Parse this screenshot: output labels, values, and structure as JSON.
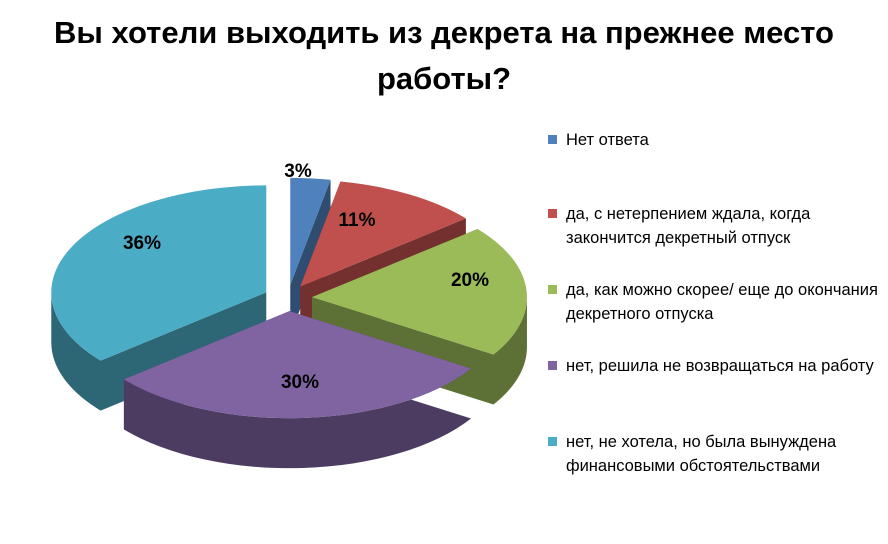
{
  "chart_data": {
    "type": "pie",
    "title": "Вы хотели выходить из декрета на прежнее место работы?",
    "slices": [
      {
        "label": "Нет ответа",
        "value": 3,
        "display": "3%",
        "color": "#4F81BD",
        "side": "#2F4D71"
      },
      {
        "label": "да, с нетерпением ждала, когда закончится декретный отпуск",
        "value": 11,
        "display": "11%",
        "color": "#C0504D",
        "side": "#73302E"
      },
      {
        "label": "да, как можно скорее/ еще до окончания декретного отпуска",
        "value": 20,
        "display": "20%",
        "color": "#9BBB59",
        "side": "#5D7035"
      },
      {
        "label": "нет, решила не возвращаться на работу",
        "value": 30,
        "display": "30%",
        "color": "#8064A2",
        "side": "#4C3C61"
      },
      {
        "label": "нет, не хотела, но была вынуждена финансовыми обстоятельствами",
        "value": 36,
        "display": "36%",
        "color": "#4BACC6",
        "side": "#2D6776"
      }
    ],
    "legend_position": "right"
  }
}
